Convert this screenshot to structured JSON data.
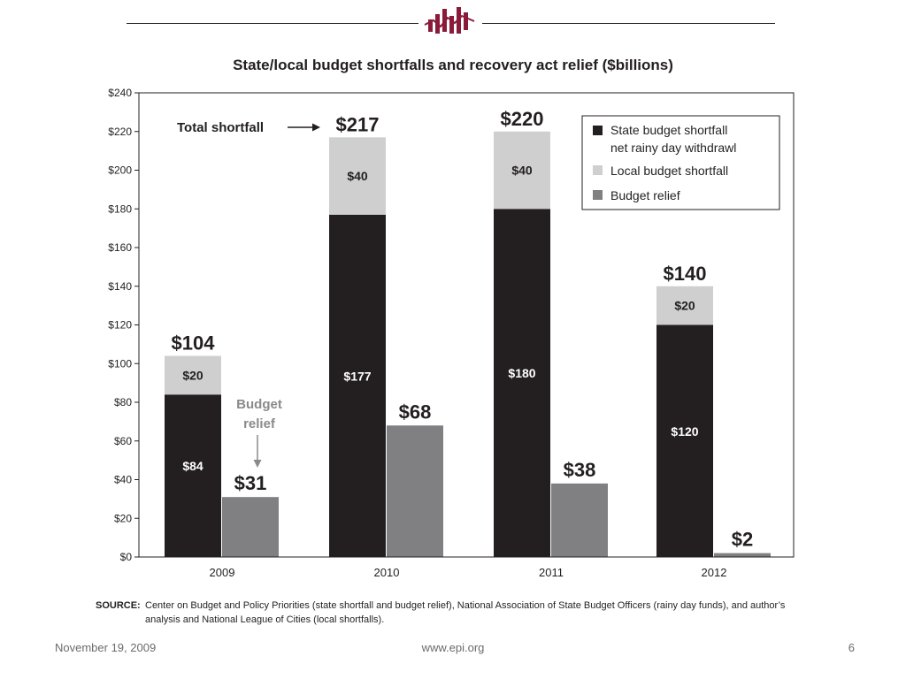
{
  "chart_data": {
    "type": "bar",
    "title": "State/local budget shortfalls and recovery act relief ($billions)",
    "categories": [
      "2009",
      "2010",
      "2011",
      "2012"
    ],
    "series": [
      {
        "name": "State budget shortfall net rainy day withdrawl",
        "values": [
          84,
          177,
          180,
          120
        ],
        "color": "#231f20",
        "stack": "shortfall",
        "labels": [
          "$84",
          "$177",
          "$180",
          "$120"
        ]
      },
      {
        "name": "Local budget shortfall",
        "values": [
          20,
          40,
          40,
          20
        ],
        "color": "#cfcfd0",
        "stack": "shortfall",
        "labels": [
          "$20",
          "$40",
          "$40",
          "$20"
        ]
      },
      {
        "name": "Budget relief",
        "values": [
          31,
          68,
          38,
          2
        ],
        "color": "#808083",
        "stack": "relief",
        "labels": [
          "$31",
          "$68",
          "$38",
          "$2"
        ]
      }
    ],
    "totals": [
      104,
      217,
      220,
      140
    ],
    "total_labels": [
      "$104",
      "$217",
      "$220",
      "$140"
    ],
    "ylim": [
      0,
      240
    ],
    "yticks": [
      0,
      20,
      40,
      60,
      80,
      100,
      120,
      140,
      160,
      180,
      200,
      220,
      240
    ],
    "ytick_labels": [
      "$0",
      "$20",
      "$40",
      "$60",
      "$80",
      "$100",
      "$120",
      "$140",
      "$160",
      "$180",
      "$200",
      "$220",
      "$240"
    ],
    "legend_position": "top-right",
    "legend_labels": [
      "State budget shortfall",
      "net rainy day withdrawl",
      "Local budget shortfall",
      "Budget relief"
    ],
    "annotations": {
      "total_shortfall": "Total shortfall",
      "budget_relief_line1": "Budget",
      "budget_relief_line2": "relief"
    }
  },
  "source": {
    "label": "SOURCE:",
    "text": "Center on Budget and Policy Priorities (state shortfall and budget relief), National Association of State Budget Officers (rainy day funds), and author’s analysis and National League of Cities (local shortfalls)."
  },
  "footer": {
    "date": "November 19, 2009",
    "url": "www.epi.org",
    "page": "6"
  },
  "colors": {
    "state": "#231f20",
    "local": "#cfcfd0",
    "relief": "#808083",
    "logo": "#8b1a3a",
    "annotation_gray": "#8a8a8a"
  }
}
